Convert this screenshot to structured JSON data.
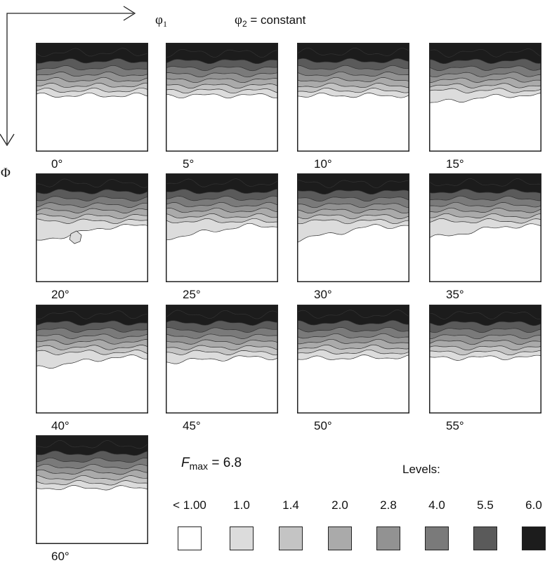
{
  "axes": {
    "phi1_symbol": "φ",
    "phi1_subscript": "1",
    "Phi_symbol": "Φ",
    "phi2_symbol": "φ",
    "phi2_subscript": "2",
    "phi2_text": " = constant"
  },
  "fmax": {
    "symbol": "F",
    "subscript": "max",
    "value_text": " = 6.8"
  },
  "legend": {
    "title": "Levels:",
    "levels": [
      {
        "label": "< 1.00",
        "color": "#ffffff"
      },
      {
        "label": "1.0",
        "color": "#dcdcdc"
      },
      {
        "label": "1.4",
        "color": "#c4c4c4"
      },
      {
        "label": "2.0",
        "color": "#aaaaaa"
      },
      {
        "label": "2.8",
        "color": "#929292"
      },
      {
        "label": "4.0",
        "color": "#7a7a7a"
      },
      {
        "label": "5.5",
        "color": "#5a5a5a"
      },
      {
        "label": "6.0",
        "color": "#1c1c1c"
      }
    ]
  },
  "sections": [
    {
      "label": "0°"
    },
    {
      "label": "5°"
    },
    {
      "label": "10°"
    },
    {
      "label": "15°"
    },
    {
      "label": "20°"
    },
    {
      "label": "25°"
    },
    {
      "label": "30°"
    },
    {
      "label": "35°"
    },
    {
      "label": "40°"
    },
    {
      "label": "45°"
    },
    {
      "label": "50°"
    },
    {
      "label": "55°"
    },
    {
      "label": "60°"
    }
  ]
}
